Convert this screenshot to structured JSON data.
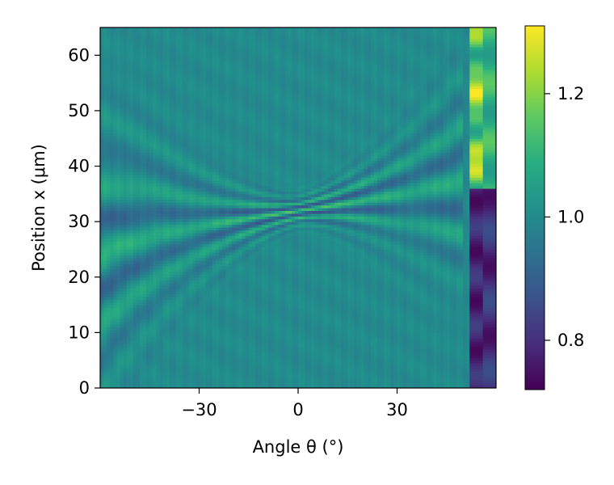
{
  "chart_data": {
    "type": "heatmap",
    "title": "",
    "xlabel": "Angle θ (°)",
    "ylabel": "Position x (μm)",
    "xlim": [
      -60,
      60
    ],
    "ylim": [
      0,
      65
    ],
    "x_ticks": [
      -30,
      0,
      30
    ],
    "x_tick_labels": [
      "−30",
      "0",
      "30"
    ],
    "y_ticks": [
      0,
      10,
      20,
      30,
      40,
      50,
      60
    ],
    "y_tick_labels": [
      "0",
      "10",
      "20",
      "30",
      "40",
      "50",
      "60"
    ],
    "colormap": "viridis",
    "colorbar": {
      "range": [
        0.72,
        1.31
      ],
      "ticks": [
        0.8,
        1.0,
        1.2
      ],
      "tick_labels": [
        "0.8",
        "1.0",
        "1.2"
      ]
    },
    "grid": false,
    "background_value": 1.0,
    "features": [
      {
        "description": "interference fringes converging to a focus",
        "x_range": [
          -60,
          46
        ],
        "y_center_at_x0": 32,
        "y_left_edge": [
          14,
          31
        ],
        "y_right_edge": [
          33,
          42
        ]
      },
      {
        "description": "bright high-intensity band at right edge",
        "x_range": [
          53,
          57
        ],
        "y_range": [
          36,
          65
        ],
        "value_max": 1.31
      },
      {
        "description": "dark low-intensity band at right edge",
        "x_range": [
          53,
          60
        ],
        "y_range": [
          0,
          34
        ],
        "value_min": 0.72
      }
    ]
  }
}
